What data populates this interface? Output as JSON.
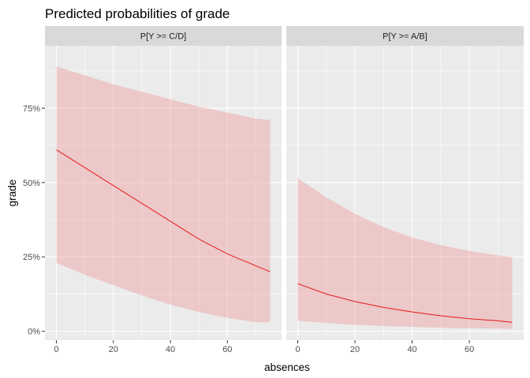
{
  "chart_data": {
    "type": "line",
    "title": "Predicted probabilities of grade",
    "xlabel": "absences",
    "ylabel": "grade",
    "x_ticks": [
      0,
      20,
      40,
      60
    ],
    "x_tick_labels": [
      "0",
      "20",
      "40",
      "60"
    ],
    "xlim": [
      -4,
      79
    ],
    "y_ticks": [
      0,
      0.25,
      0.5,
      0.75
    ],
    "y_tick_labels": [
      "0%",
      "25%",
      "50%",
      "75%"
    ],
    "ylim": [
      -0.03,
      0.96
    ],
    "grid": true,
    "colors": {
      "line": "#e41a1c",
      "ribbon": "#f08080",
      "panel_bg": "#ebebeb",
      "strip_bg": "#d9d9d9",
      "grid": "#ffffff"
    },
    "panels": [
      {
        "strip": "P[Y >= C/D]",
        "x": [
          0,
          10,
          20,
          30,
          40,
          50,
          60,
          70,
          75
        ],
        "fit": [
          0.61,
          0.55,
          0.49,
          0.43,
          0.37,
          0.31,
          0.26,
          0.22,
          0.2
        ],
        "lower": [
          0.23,
          0.19,
          0.155,
          0.12,
          0.09,
          0.065,
          0.045,
          0.03,
          0.03
        ],
        "upper": [
          0.89,
          0.86,
          0.83,
          0.805,
          0.78,
          0.755,
          0.735,
          0.715,
          0.71
        ]
      },
      {
        "strip": "P[Y >= A/B]",
        "x": [
          0,
          10,
          20,
          30,
          40,
          50,
          60,
          70,
          75
        ],
        "fit": [
          0.16,
          0.125,
          0.1,
          0.08,
          0.065,
          0.052,
          0.042,
          0.035,
          0.03
        ],
        "lower": [
          0.035,
          0.028,
          0.022,
          0.018,
          0.015,
          0.012,
          0.01,
          0.009,
          0.008
        ],
        "upper": [
          0.515,
          0.45,
          0.395,
          0.35,
          0.315,
          0.29,
          0.27,
          0.255,
          0.25
        ]
      }
    ]
  }
}
